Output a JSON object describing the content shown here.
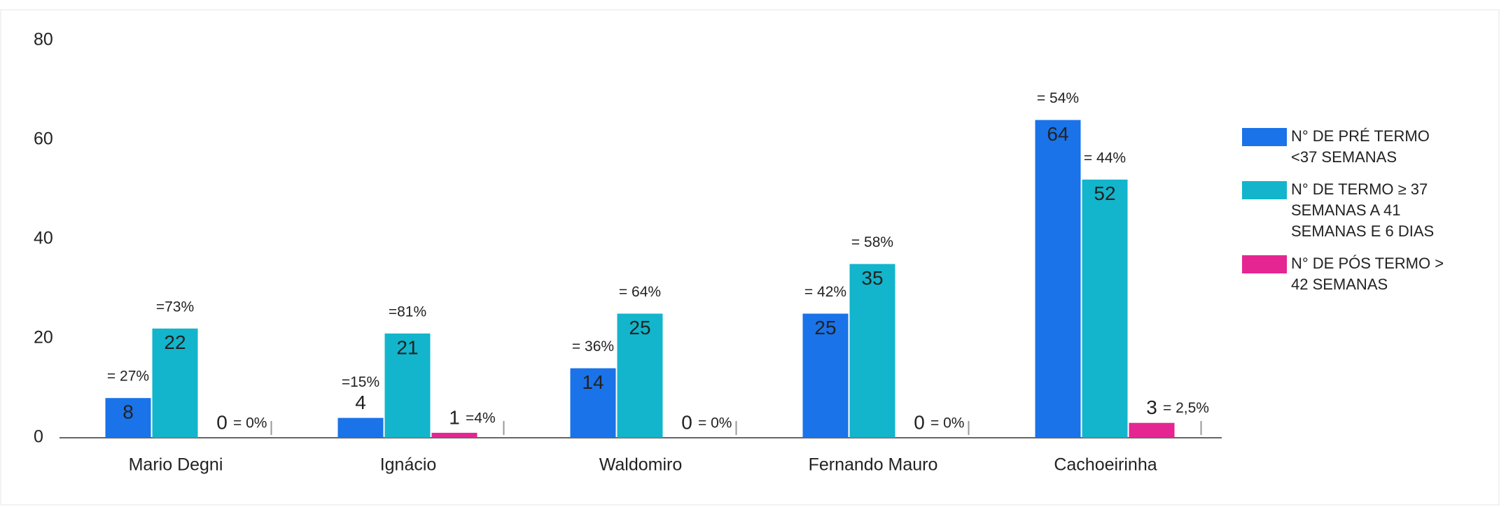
{
  "chart_data": {
    "type": "bar",
    "categories": [
      "Mario Degni",
      "Ignácio",
      "Waldomiro",
      "Fernando Mauro",
      "Cachoeirinha"
    ],
    "series": [
      {
        "name": "N° DE PRÉ TERMO <37 SEMANAS",
        "color": "#1a73e8",
        "values": [
          8,
          4,
          14,
          25,
          64
        ],
        "annotations": [
          "= 27%",
          "=15%",
          "= 36%",
          "= 42%",
          "= 54%"
        ]
      },
      {
        "name": "N° DE TERMO ≥ 37 SEMANAS A 41 SEMANAS E 6 DIAS",
        "color": "#12b5cb",
        "values": [
          22,
          21,
          25,
          35,
          52
        ],
        "annotations": [
          "=73%",
          "=81%",
          "= 64%",
          "= 58%",
          "= 44%"
        ]
      },
      {
        "name": "N° DE PÓS TERMO > 42 SEMANAS",
        "color": "#e52592",
        "values": [
          0,
          1,
          0,
          0,
          3
        ],
        "annotations": [
          "= 0%",
          "=4%",
          "= 0%",
          "= 0%",
          "= 2,5%"
        ]
      }
    ],
    "ylim": [
      0,
      80
    ],
    "yticks": [
      0,
      20,
      40,
      60,
      80
    ],
    "grid": false,
    "legend": "right"
  }
}
